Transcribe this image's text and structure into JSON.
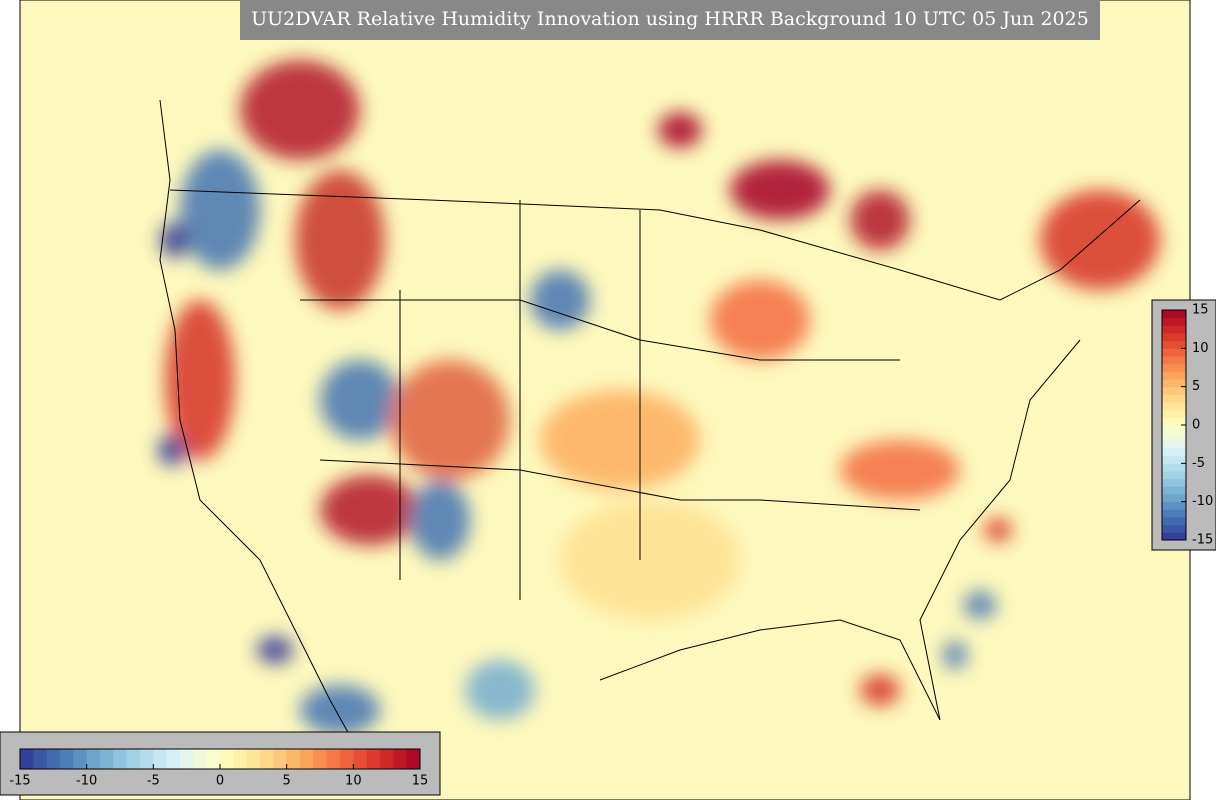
{
  "title": "UU2DVAR Relative Humidity Innovation using HRRR Background 10 UTC 05 Jun 2025",
  "colorbar": {
    "range": [
      -15,
      15
    ],
    "colors": [
      "#313695",
      "#4575b4",
      "#74add1",
      "#abd9e9",
      "#e0f3f8",
      "#ffffbf",
      "#fee090",
      "#fdae61",
      "#f46d43",
      "#d73027",
      "#a50026"
    ],
    "ticks_right": [
      15,
      10,
      5,
      0,
      -5,
      -10,
      -15
    ],
    "ticks_bottom": [
      -15,
      -10,
      -5,
      0,
      5,
      10,
      15
    ]
  }
}
